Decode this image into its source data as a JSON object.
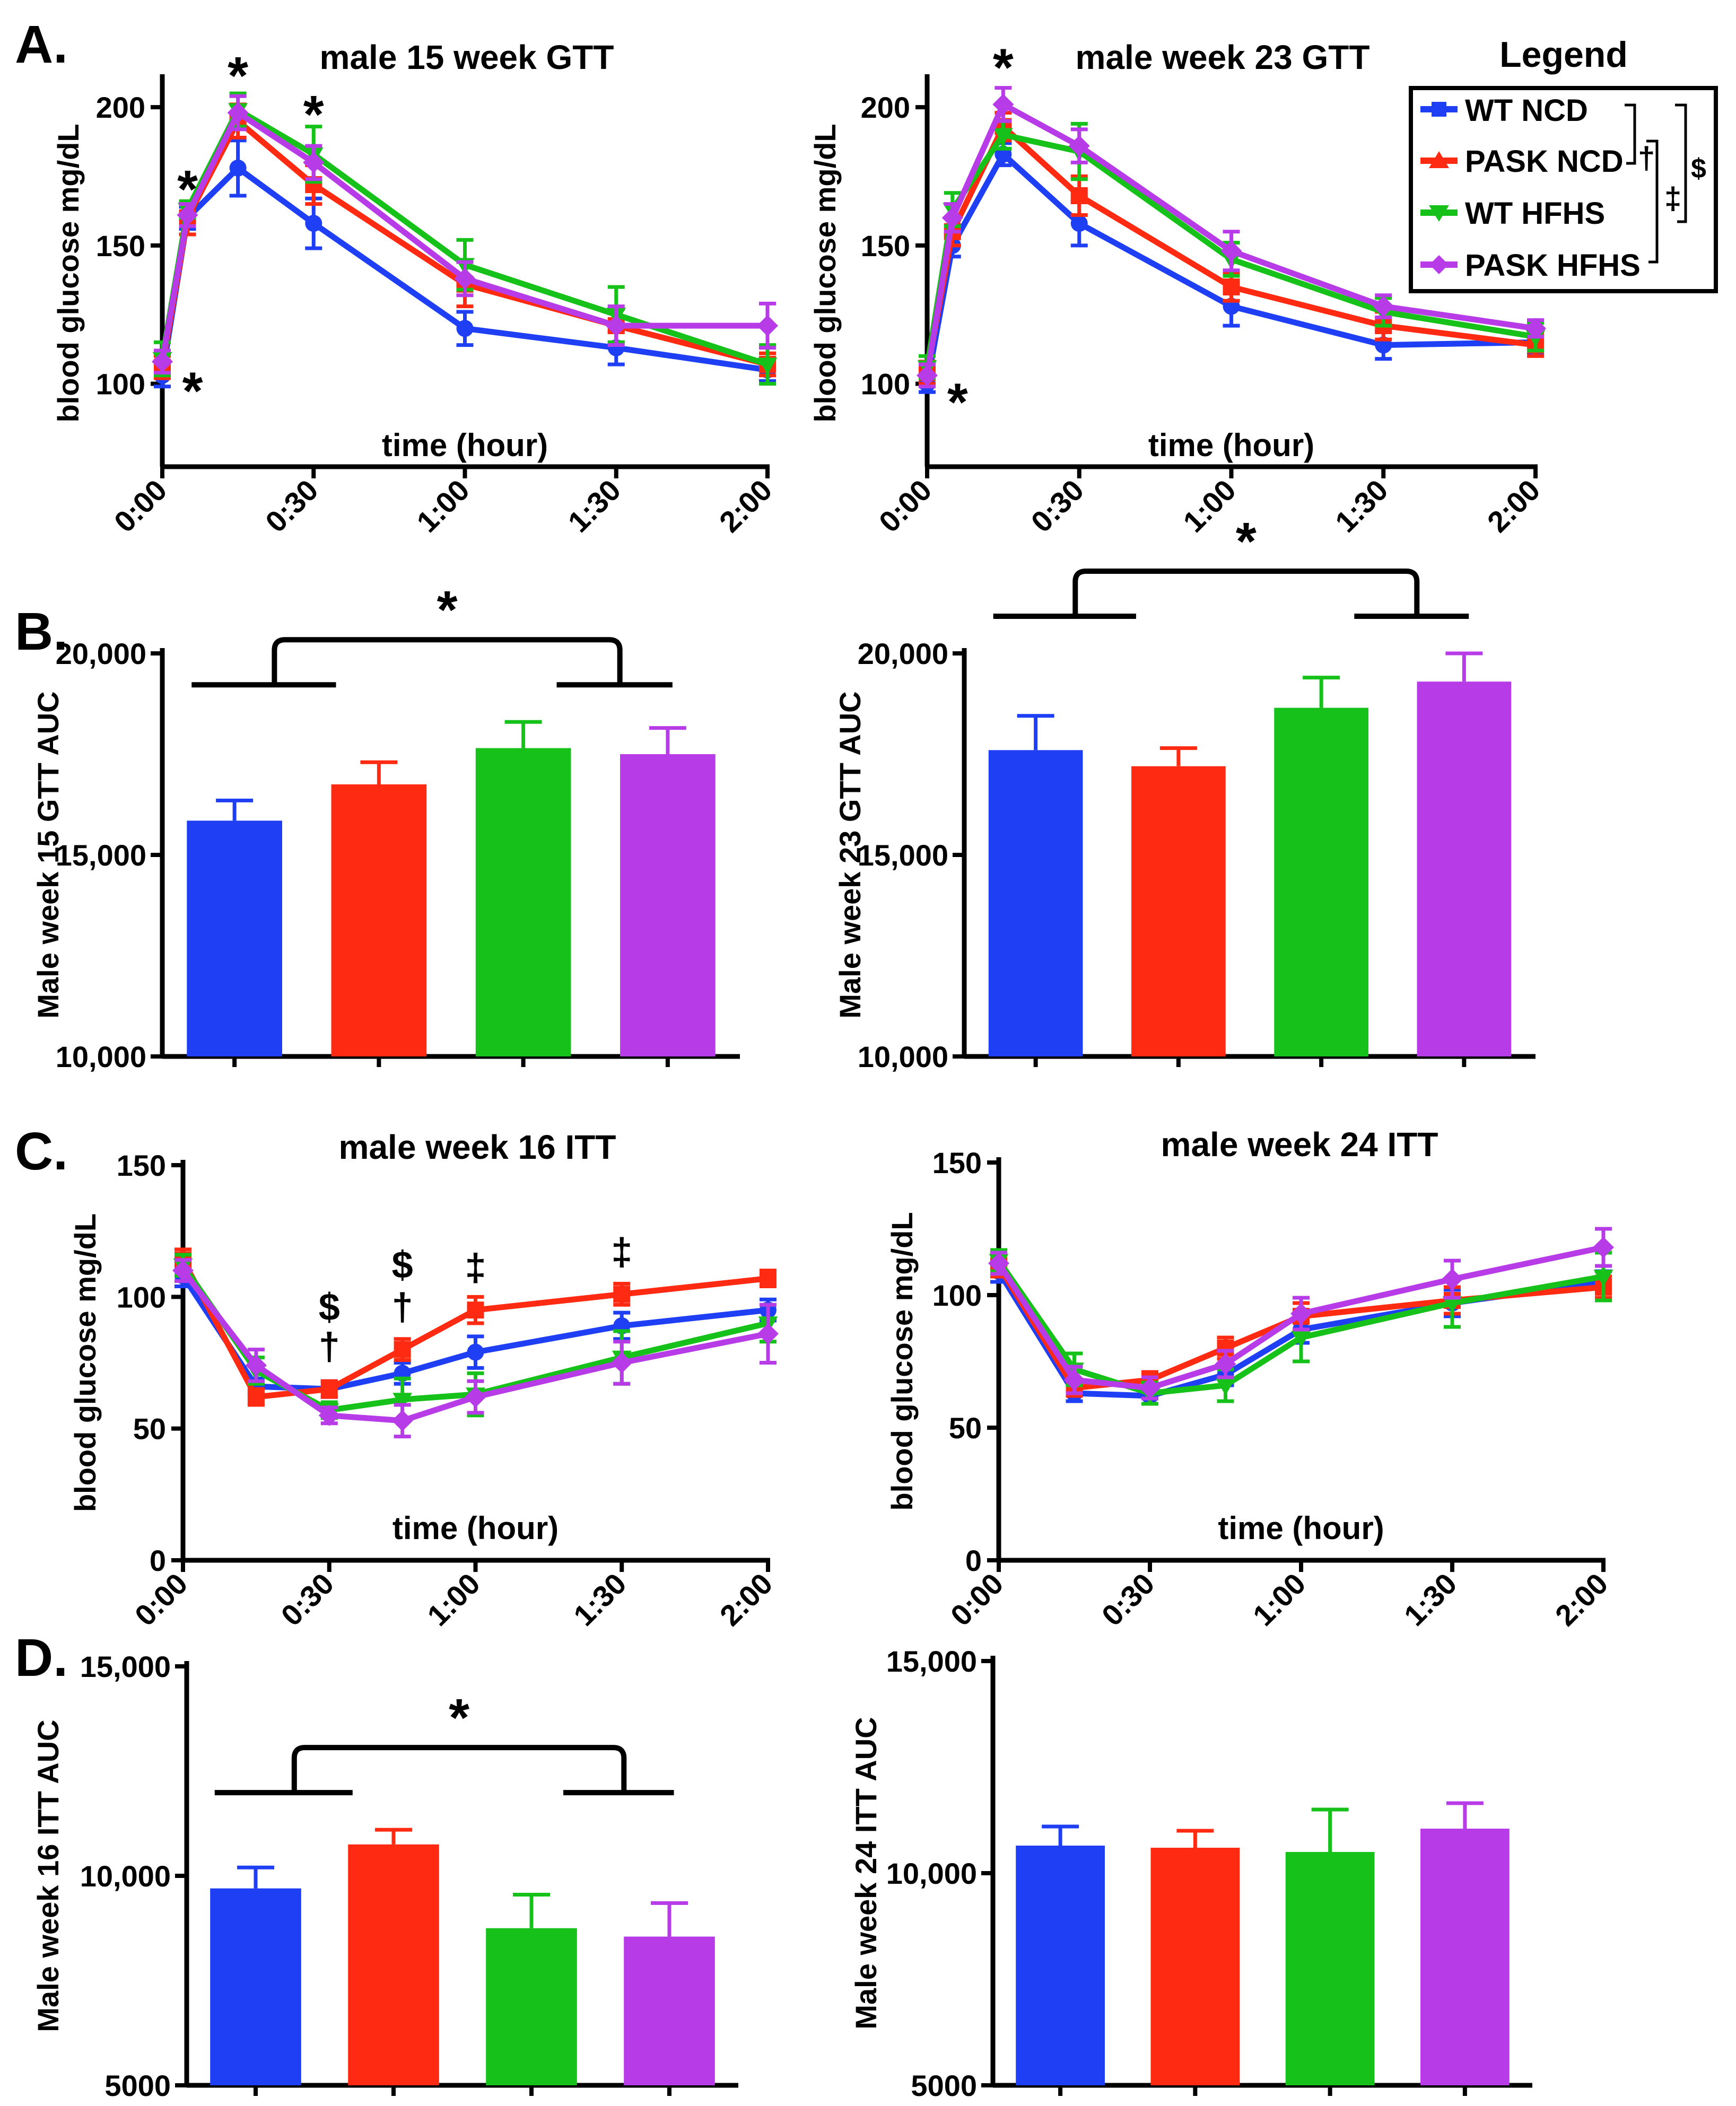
{
  "colors": {
    "WT NCD": "#1f3ff5",
    "PASK NCD": "#ff2a12",
    "WT HFHS": "#16c219",
    "PASK HFHS": "#b73ce8",
    "axis": "#000000"
  },
  "panel_labels": [
    "A.",
    "B.",
    "C.",
    "D."
  ],
  "legend": {
    "title": "Legend",
    "entries": [
      "WT NCD",
      "PASK NCD",
      "WT HFHS",
      "PASK HFHS"
    ],
    "symbols": [
      "†",
      "‡",
      "$"
    ]
  },
  "chart_data": [
    {
      "id": "gtt15",
      "type": "line",
      "title": "male 15 week GTT",
      "xlabel": "time (hour)",
      "ylabel": "blood glucose mg/dL",
      "x": [
        0,
        5,
        15,
        30,
        60,
        90,
        120
      ],
      "xticks": [
        0,
        30,
        60,
        90,
        120
      ],
      "xtick_labels": [
        "0:00",
        "0:30",
        "1:00",
        "1:30",
        "2:00"
      ],
      "xlim": [
        0,
        120
      ],
      "ylim": [
        70,
        210
      ],
      "yticks": [
        100,
        150,
        200
      ],
      "ytick_labels": [
        "100",
        "150",
        "200"
      ],
      "series": [
        {
          "name": "WT NCD",
          "values": [
            103,
            160,
            178,
            158,
            120,
            113,
            105
          ],
          "errors": [
            4,
            4,
            10,
            9,
            6,
            6,
            4
          ]
        },
        {
          "name": "PASK NCD",
          "values": [
            106,
            160,
            195,
            172,
            136,
            121,
            107
          ],
          "errors": [
            4,
            6,
            6,
            7,
            8,
            6,
            4
          ]
        },
        {
          "name": "WT HFHS",
          "values": [
            109,
            163,
            199,
            183,
            143,
            125,
            107
          ],
          "errors": [
            6,
            3,
            6,
            10,
            9,
            10,
            7
          ]
        },
        {
          "name": "PASK HFHS",
          "values": [
            108,
            161,
            198,
            180,
            138,
            121,
            121
          ],
          "errors": [
            4,
            4,
            6,
            6,
            6,
            7,
            8
          ]
        }
      ],
      "annotations": [
        {
          "text": "*",
          "x": 5,
          "y": 173
        },
        {
          "text": "*",
          "x": 15,
          "y": 214
        },
        {
          "text": "*",
          "x": 30,
          "y": 200
        },
        {
          "text": "*",
          "x": 6,
          "y": 100
        }
      ]
    },
    {
      "id": "gtt23",
      "type": "line",
      "title": "male week 23 GTT",
      "xlabel": "time (hour)",
      "ylabel": "blood glucose mg/dL",
      "x": [
        0,
        5,
        15,
        30,
        60,
        90,
        120
      ],
      "xticks": [
        0,
        30,
        60,
        90,
        120
      ],
      "xtick_labels": [
        "0:00",
        "0:30",
        "1:00",
        "1:30",
        "2:00"
      ],
      "xlim": [
        0,
        120
      ],
      "ylim": [
        70,
        210
      ],
      "yticks": [
        100,
        150,
        200
      ],
      "ytick_labels": [
        "100",
        "150",
        "200"
      ],
      "series": [
        {
          "name": "WT NCD",
          "values": [
            100,
            150,
            183,
            158,
            128,
            114,
            115
          ],
          "errors": [
            3,
            4,
            4,
            8,
            7,
            5,
            4
          ]
        },
        {
          "name": "PASK NCD",
          "values": [
            104,
            155,
            193,
            168,
            135,
            121,
            114
          ],
          "errors": [
            4,
            5,
            5,
            7,
            5,
            5,
            4
          ]
        },
        {
          "name": "WT HFHS",
          "values": [
            106,
            163,
            190,
            184,
            145,
            126,
            117
          ],
          "errors": [
            4,
            6,
            5,
            10,
            6,
            5,
            5
          ]
        },
        {
          "name": "PASK HFHS",
          "values": [
            103,
            160,
            201,
            186,
            148,
            128,
            120
          ],
          "errors": [
            4,
            5,
            6,
            6,
            7,
            4,
            3
          ]
        }
      ],
      "annotations": [
        {
          "text": "*",
          "x": 15,
          "y": 217
        },
        {
          "text": "*",
          "x": 6,
          "y": 96
        }
      ]
    },
    {
      "id": "auc15",
      "type": "bar",
      "title": "",
      "xlabel": "",
      "ylabel": "Male week 15 GTT AUC",
      "categories": [
        "WT NCD",
        "PASK NCD",
        "WT HFHS",
        "PASK HFHS"
      ],
      "values": [
        15850,
        16750,
        17650,
        17500
      ],
      "errors": [
        500,
        550,
        650,
        650
      ],
      "ylim": [
        10000,
        20000
      ],
      "yticks": [
        10000,
        15000,
        20000
      ],
      "ytick_labels": [
        "10,000",
        "15,000",
        "20,000"
      ],
      "significance": "*"
    },
    {
      "id": "auc23",
      "type": "bar",
      "title": "",
      "xlabel": "",
      "ylabel": "Male week 23 GTT AUC",
      "categories": [
        "WT NCD",
        "PASK NCD",
        "WT HFHS",
        "PASK HFHS"
      ],
      "values": [
        17600,
        17200,
        18650,
        19300
      ],
      "errors": [
        850,
        450,
        750,
        700
      ],
      "ylim": [
        10000,
        20000
      ],
      "yticks": [
        10000,
        15000,
        20000
      ],
      "ytick_labels": [
        "10,000",
        "15,000",
        "20,000"
      ],
      "significance": "*"
    },
    {
      "id": "itt16",
      "type": "line",
      "title": "male week 16 ITT",
      "xlabel": "time (hour)",
      "ylabel": "blood glucose mg/dL",
      "x": [
        0,
        15,
        30,
        45,
        60,
        90,
        120
      ],
      "xticks": [
        0,
        30,
        60,
        90,
        120
      ],
      "xtick_labels": [
        "0:00",
        "0:30",
        "1:00",
        "1:30",
        "2:00"
      ],
      "xlim": [
        0,
        120
      ],
      "ylim": [
        0,
        150
      ],
      "yticks": [
        0,
        50,
        100,
        150
      ],
      "ytick_labels": [
        "0",
        "50",
        "100",
        "150"
      ],
      "series": [
        {
          "name": "WT NCD",
          "values": [
            108,
            66,
            65,
            71,
            79,
            89,
            95
          ],
          "errors": [
            4,
            3,
            3,
            4,
            6,
            5,
            4
          ]
        },
        {
          "name": "PASK NCD",
          "values": [
            114,
            62,
            65,
            80,
            95,
            101,
            107
          ],
          "errors": [
            4,
            3,
            3,
            4,
            5,
            4,
            3
          ]
        },
        {
          "name": "WT HFHS",
          "values": [
            112,
            72,
            57,
            61,
            63,
            77,
            90
          ],
          "errors": [
            4,
            5,
            3,
            8,
            8,
            10,
            7
          ]
        },
        {
          "name": "PASK HFHS",
          "values": [
            110,
            74,
            55,
            53,
            62,
            75,
            86
          ],
          "errors": [
            4,
            6,
            3,
            6,
            6,
            8,
            11
          ]
        }
      ],
      "annotations": [
        {
          "text": "$",
          "x": 30,
          "y": 96
        },
        {
          "text": "†",
          "x": 30,
          "y": 81
        },
        {
          "text": "$",
          "x": 45,
          "y": 112
        },
        {
          "text": "†",
          "x": 45,
          "y": 96
        },
        {
          "text": "‡",
          "x": 60,
          "y": 111
        },
        {
          "text": "‡",
          "x": 90,
          "y": 117
        }
      ]
    },
    {
      "id": "itt24",
      "type": "line",
      "title": "male week 24 ITT",
      "xlabel": "time (hour)",
      "ylabel": "blood glucose mg/dL",
      "x": [
        0,
        15,
        30,
        45,
        60,
        90,
        120
      ],
      "xticks": [
        0,
        30,
        60,
        90,
        120
      ],
      "xtick_labels": [
        "0:00",
        "0:30",
        "1:00",
        "1:30",
        "2:00"
      ],
      "xlim": [
        0,
        120
      ],
      "ylim": [
        0,
        150
      ],
      "yticks": [
        0,
        50,
        100,
        150
      ],
      "ytick_labels": [
        "0",
        "50",
        "100",
        "150"
      ],
      "series": [
        {
          "name": "WT NCD",
          "values": [
            109,
            63,
            62,
            70,
            87,
            97,
            105
          ],
          "errors": [
            4,
            3,
            3,
            4,
            5,
            5,
            4
          ]
        },
        {
          "name": "PASK NCD",
          "values": [
            111,
            65,
            68,
            80,
            92,
            98,
            103
          ],
          "errors": [
            4,
            3,
            3,
            4,
            5,
            5,
            4
          ]
        },
        {
          "name": "WT HFHS",
          "values": [
            113,
            72,
            63,
            66,
            84,
            97,
            107
          ],
          "errors": [
            4,
            6,
            4,
            6,
            9,
            9,
            9
          ]
        },
        {
          "name": "PASK HFHS",
          "values": [
            112,
            68,
            65,
            74,
            93,
            106,
            118
          ],
          "errors": [
            4,
            5,
            4,
            5,
            6,
            7,
            7
          ]
        }
      ],
      "annotations": []
    },
    {
      "id": "auc16",
      "type": "bar",
      "title": "",
      "xlabel": "",
      "ylabel": "Male week 16 ITT AUC",
      "categories": [
        "WT NCD",
        "PASK NCD",
        "WT HFHS",
        "PASK HFHS"
      ],
      "values": [
        9700,
        10750,
        8750,
        8550
      ],
      "errors": [
        500,
        350,
        800,
        800
      ],
      "ylim": [
        5000,
        15000
      ],
      "yticks": [
        5000,
        10000,
        15000
      ],
      "ytick_labels": [
        "5000",
        "10,000",
        "15,000"
      ],
      "significance": "*"
    },
    {
      "id": "auc24",
      "type": "bar",
      "title": "",
      "xlabel": "",
      "ylabel": "Male week 24 ITT AUC",
      "categories": [
        "WT NCD",
        "PASK NCD",
        "WT HFHS",
        "PASK HFHS"
      ],
      "values": [
        10650,
        10600,
        10500,
        11050
      ],
      "errors": [
        450,
        400,
        1000,
        600
      ],
      "ylim": [
        5000,
        15000
      ],
      "yticks": [
        5000,
        10000,
        15000
      ],
      "ytick_labels": [
        "5000",
        "10,000",
        "15,000"
      ],
      "significance": ""
    }
  ]
}
